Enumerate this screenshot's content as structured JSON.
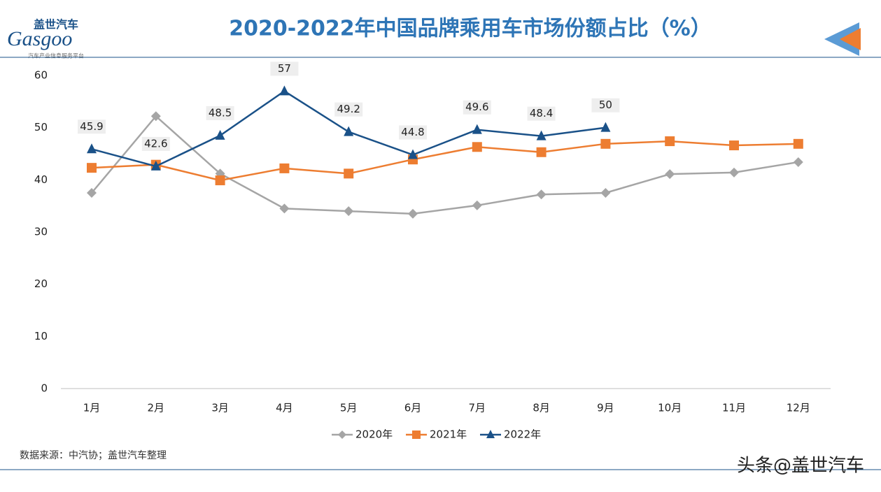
{
  "chart_data": {
    "type": "line",
    "title": "2020-2022年中国品牌乘用车市场份额占比（%）",
    "logo": {
      "cn": "盖世汽车",
      "en": "Gasgoo",
      "tagline": "汽车产业信息服务平台"
    },
    "source": "数据来源：中汽协；盖世汽车整理",
    "watermark": "头条@盖世汽车",
    "categories": [
      "1月",
      "2月",
      "3月",
      "4月",
      "5月",
      "6月",
      "7月",
      "8月",
      "9月",
      "10月",
      "11月",
      "12月"
    ],
    "ylim": [
      0,
      60
    ],
    "yticks": [
      0,
      10,
      20,
      30,
      40,
      50,
      60
    ],
    "grid": false,
    "legend": "bottom",
    "series": [
      {
        "name": "2020年",
        "color": "#a5a5a5",
        "marker": "diamond",
        "values": [
          37.5,
          52.2,
          41.2,
          34.5,
          34.0,
          33.5,
          35.1,
          37.2,
          37.5,
          41.1,
          41.4,
          43.4
        ]
      },
      {
        "name": "2021年",
        "color": "#ed7d31",
        "marker": "square",
        "values": [
          42.3,
          42.9,
          39.9,
          42.2,
          41.2,
          43.9,
          46.3,
          45.3,
          46.9,
          47.4,
          46.6,
          46.9
        ]
      },
      {
        "name": "2022年",
        "color": "#1a5188",
        "marker": "triangle",
        "show_labels": true,
        "values": [
          45.9,
          42.6,
          48.5,
          57,
          49.2,
          44.8,
          49.6,
          48.4,
          50,
          null,
          null,
          null
        ]
      }
    ]
  }
}
